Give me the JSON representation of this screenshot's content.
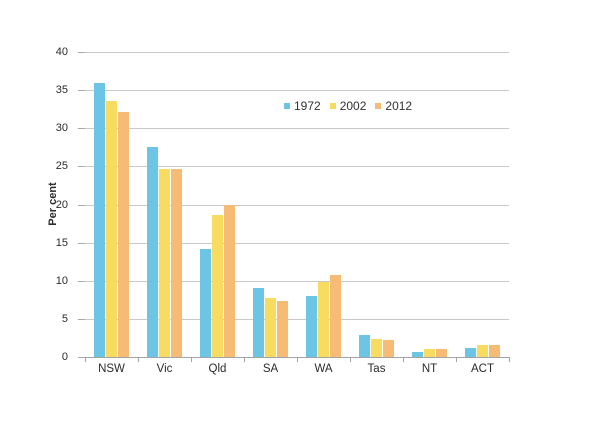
{
  "chart_data": {
    "type": "bar",
    "title": "",
    "xlabel": "",
    "ylabel": "Per cent",
    "ylim": [
      0,
      40
    ],
    "ytick_step": 5,
    "yticks": [
      0,
      5,
      10,
      15,
      20,
      25,
      30,
      35,
      40
    ],
    "grid": true,
    "legend_position": "inside-upper-center",
    "categories": [
      "NSW",
      "Vic",
      "Qld",
      "SA",
      "WA",
      "Tas",
      "NT",
      "ACT"
    ],
    "series": [
      {
        "name": "1972",
        "color": "#6cc5e5",
        "values": [
          36.0,
          27.5,
          14.2,
          9.0,
          8.0,
          2.9,
          0.6,
          1.2
        ]
      },
      {
        "name": "2002",
        "color": "#f8dc62",
        "values": [
          33.6,
          24.6,
          18.6,
          7.7,
          9.8,
          2.4,
          1.0,
          1.6
        ]
      },
      {
        "name": "2012",
        "color": "#f6bb75",
        "values": [
          32.1,
          24.7,
          20.0,
          7.3,
          10.7,
          2.2,
          1.0,
          1.6
        ]
      }
    ]
  },
  "colors": {
    "background": "#ffffff",
    "gridline": "#c9c9c9",
    "axis": "#a3a3a3",
    "text": "#2b2b2b"
  }
}
